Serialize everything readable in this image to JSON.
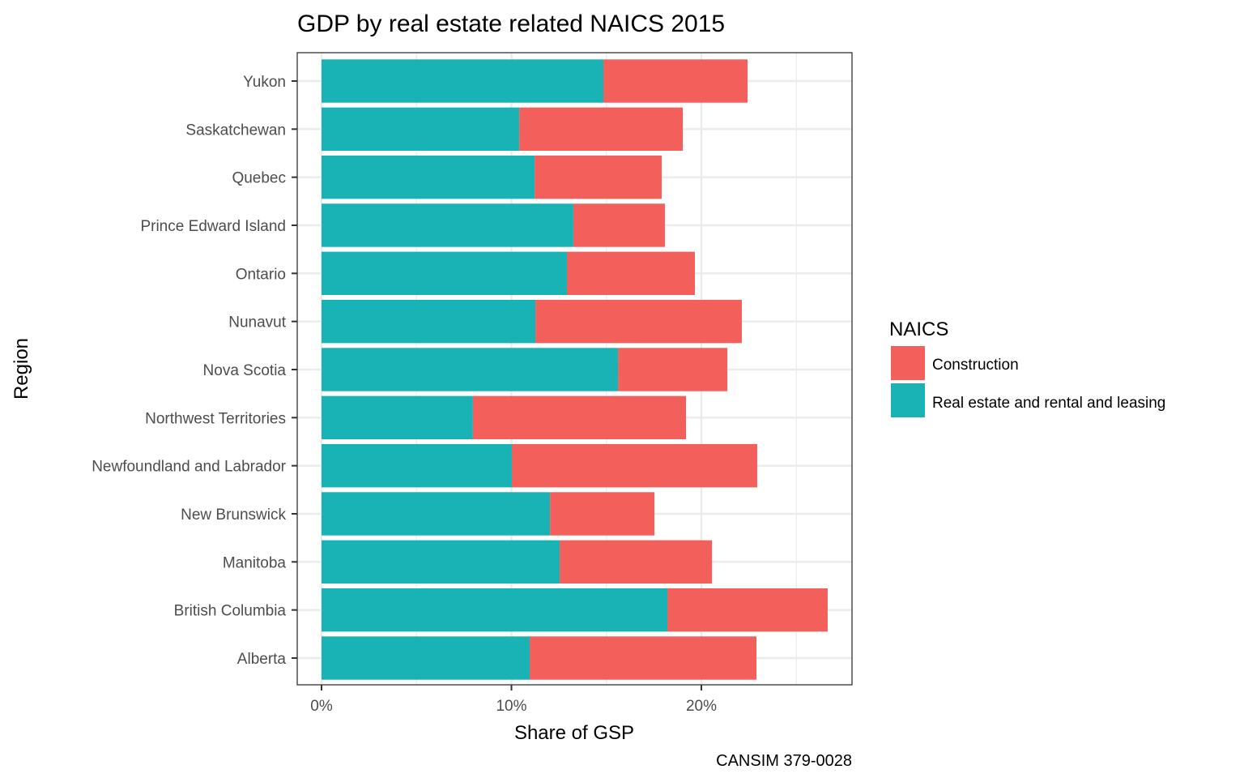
{
  "chart_data": {
    "type": "bar",
    "orientation": "horizontal",
    "stacked": true,
    "title": "GDP by real estate related NAICS 2015",
    "xlabel": "Share of GSP",
    "ylabel": "Region",
    "caption": "CANSIM 379-0028",
    "xlim": [
      0,
      27.5
    ],
    "x_ticks": [
      0,
      10,
      20
    ],
    "x_tick_labels": [
      "0%",
      "10%",
      "20%"
    ],
    "x_minor_gridlines": [
      5,
      15,
      25
    ],
    "grid": true,
    "categories": [
      "Alberta",
      "British Columbia",
      "Manitoba",
      "New Brunswick",
      "Newfoundland and Labrador",
      "Northwest Territories",
      "Nova Scotia",
      "Nunavut",
      "Ontario",
      "Prince Edward Island",
      "Quebec",
      "Saskatchewan",
      "Yukon"
    ],
    "series": [
      {
        "name": "Real estate and rental and leasing",
        "color": "#19B3B6",
        "values": [
          10.96,
          18.21,
          12.54,
          12.03,
          10.02,
          7.97,
          15.61,
          11.26,
          12.92,
          13.26,
          11.22,
          10.41,
          14.84
        ]
      },
      {
        "name": "Construction",
        "color": "#F3605C",
        "values": [
          11.94,
          8.44,
          8.02,
          5.5,
          12.92,
          11.22,
          5.76,
          10.87,
          6.74,
          4.82,
          6.69,
          8.61,
          7.59
        ]
      }
    ],
    "legend": {
      "title": "NAICS",
      "placement": "right",
      "entries": [
        {
          "label": "Construction",
          "color": "#F3605C"
        },
        {
          "label": "Real estate and rental and leasing",
          "color": "#19B3B6"
        }
      ]
    }
  }
}
